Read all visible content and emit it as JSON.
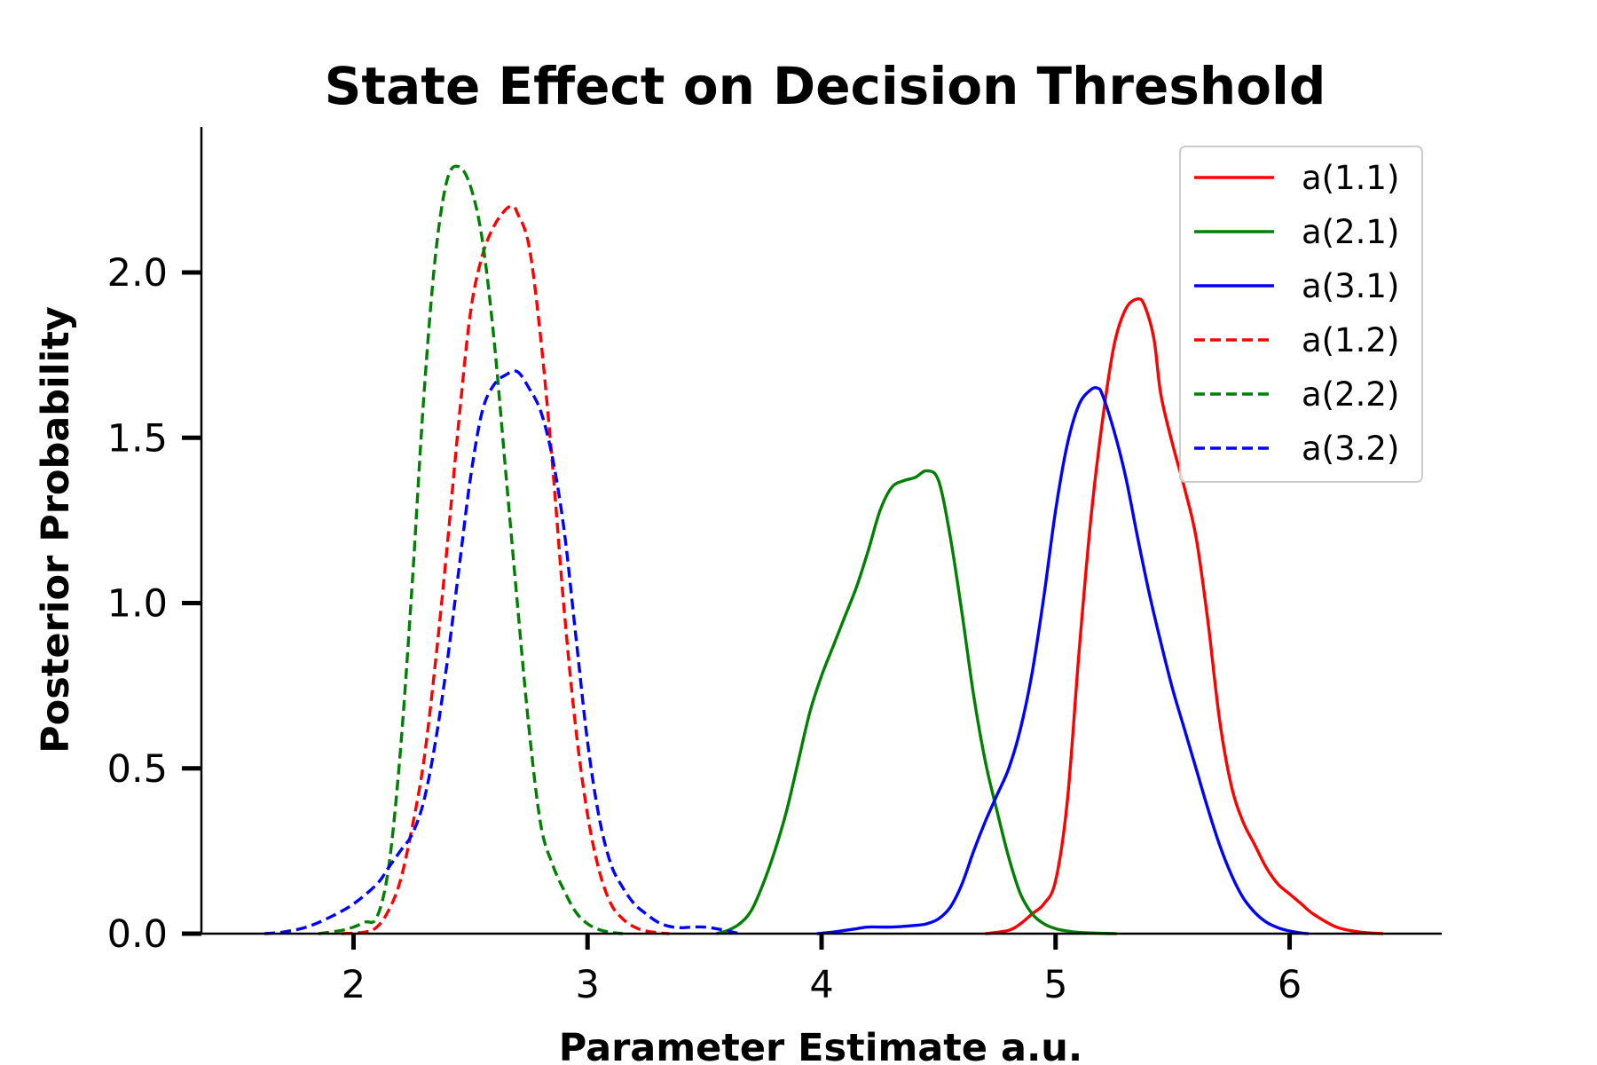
{
  "chart_data": {
    "type": "line",
    "title": "State Effect on Decision Threshold",
    "xlabel": "Parameter Estimate a.u.",
    "ylabel": "Posterior Probability",
    "xlim": [
      1.35,
      6.65
    ],
    "ylim": [
      0,
      2.4
    ],
    "xticks": [
      2,
      3,
      4,
      5,
      6
    ],
    "yticks": [
      0.0,
      0.5,
      1.0,
      1.5,
      2.0
    ],
    "xtick_labels": [
      "2",
      "3",
      "4",
      "5",
      "6"
    ],
    "ytick_labels": [
      "0.0",
      "0.5",
      "1.0",
      "1.5",
      "2.0"
    ],
    "legend_position": "top-right",
    "grid": false,
    "series": [
      {
        "name": "a(1.1)",
        "color": "#ff0000",
        "linestyle": "solid",
        "x": [
          4.7,
          4.8,
          4.85,
          4.9,
          4.95,
          5.0,
          5.05,
          5.1,
          5.15,
          5.2,
          5.25,
          5.3,
          5.35,
          5.38,
          5.42,
          5.45,
          5.5,
          5.55,
          5.6,
          5.65,
          5.7,
          5.75,
          5.8,
          5.85,
          5.9,
          5.95,
          6.0,
          6.05,
          6.1,
          6.2,
          6.3,
          6.4
        ],
        "y": [
          0.0,
          0.01,
          0.03,
          0.06,
          0.09,
          0.16,
          0.4,
          0.85,
          1.25,
          1.55,
          1.78,
          1.89,
          1.92,
          1.9,
          1.8,
          1.63,
          1.48,
          1.35,
          1.2,
          0.95,
          0.65,
          0.45,
          0.34,
          0.27,
          0.2,
          0.15,
          0.12,
          0.09,
          0.06,
          0.02,
          0.005,
          0.0
        ]
      },
      {
        "name": "a(2.1)",
        "color": "#008000",
        "linestyle": "solid",
        "x": [
          3.55,
          3.6,
          3.65,
          3.7,
          3.75,
          3.8,
          3.85,
          3.9,
          3.95,
          4.0,
          4.05,
          4.1,
          4.15,
          4.2,
          4.25,
          4.3,
          4.35,
          4.4,
          4.45,
          4.5,
          4.55,
          4.6,
          4.65,
          4.7,
          4.75,
          4.8,
          4.85,
          4.9,
          4.95,
          5.0,
          5.05,
          5.1,
          5.2,
          5.26
        ],
        "y": [
          0.0,
          0.01,
          0.03,
          0.07,
          0.15,
          0.25,
          0.37,
          0.52,
          0.67,
          0.78,
          0.87,
          0.96,
          1.05,
          1.16,
          1.28,
          1.35,
          1.37,
          1.38,
          1.4,
          1.37,
          1.2,
          0.97,
          0.72,
          0.52,
          0.37,
          0.23,
          0.12,
          0.06,
          0.03,
          0.015,
          0.008,
          0.004,
          0.001,
          0.0
        ]
      },
      {
        "name": "a(3.1)",
        "color": "#0000ff",
        "linestyle": "solid",
        "x": [
          3.98,
          4.05,
          4.1,
          4.15,
          4.2,
          4.3,
          4.4,
          4.45,
          4.5,
          4.55,
          4.6,
          4.65,
          4.7,
          4.75,
          4.8,
          4.85,
          4.9,
          4.95,
          5.0,
          5.05,
          5.1,
          5.15,
          5.18,
          5.2,
          5.25,
          5.3,
          5.35,
          5.4,
          5.45,
          5.5,
          5.55,
          5.6,
          5.65,
          5.7,
          5.75,
          5.8,
          5.85,
          5.9,
          5.95,
          6.0,
          6.05,
          6.08
        ],
        "y": [
          0.0,
          0.005,
          0.01,
          0.015,
          0.02,
          0.02,
          0.025,
          0.03,
          0.045,
          0.08,
          0.15,
          0.25,
          0.34,
          0.42,
          0.5,
          0.62,
          0.79,
          1.02,
          1.28,
          1.48,
          1.6,
          1.645,
          1.65,
          1.63,
          1.52,
          1.38,
          1.2,
          1.03,
          0.88,
          0.74,
          0.62,
          0.5,
          0.38,
          0.27,
          0.18,
          0.11,
          0.065,
          0.035,
          0.018,
          0.008,
          0.002,
          0.0
        ]
      },
      {
        "name": "a(1.2)",
        "color": "#ff0000",
        "linestyle": "dashed",
        "x": [
          1.95,
          2.05,
          2.1,
          2.15,
          2.2,
          2.25,
          2.3,
          2.35,
          2.4,
          2.45,
          2.5,
          2.55,
          2.6,
          2.65,
          2.68,
          2.7,
          2.75,
          2.8,
          2.85,
          2.9,
          2.95,
          3.0,
          3.05,
          3.1,
          3.15,
          3.2,
          3.25,
          3.3,
          3.35
        ],
        "y": [
          0.0,
          0.005,
          0.02,
          0.07,
          0.16,
          0.32,
          0.52,
          0.82,
          1.17,
          1.55,
          1.88,
          2.05,
          2.14,
          2.19,
          2.2,
          2.18,
          2.08,
          1.8,
          1.42,
          0.98,
          0.62,
          0.36,
          0.19,
          0.09,
          0.045,
          0.02,
          0.008,
          0.003,
          0.0
        ]
      },
      {
        "name": "a(2.2)",
        "color": "#008000",
        "linestyle": "dashed",
        "x": [
          1.85,
          1.95,
          2.0,
          2.05,
          2.1,
          2.15,
          2.2,
          2.25,
          2.3,
          2.35,
          2.4,
          2.45,
          2.5,
          2.55,
          2.6,
          2.65,
          2.7,
          2.75,
          2.8,
          2.85,
          2.9,
          2.95,
          3.0,
          3.05,
          3.1,
          3.15
        ],
        "y": [
          0.0,
          0.01,
          0.02,
          0.035,
          0.05,
          0.2,
          0.55,
          1.05,
          1.62,
          2.05,
          2.28,
          2.32,
          2.26,
          2.1,
          1.8,
          1.4,
          1.0,
          0.62,
          0.33,
          0.21,
          0.13,
          0.065,
          0.03,
          0.012,
          0.004,
          0.0
        ]
      },
      {
        "name": "a(3.2)",
        "color": "#0000ff",
        "linestyle": "dashed",
        "x": [
          1.62,
          1.7,
          1.8,
          1.9,
          2.0,
          2.1,
          2.15,
          2.2,
          2.25,
          2.3,
          2.35,
          2.4,
          2.45,
          2.5,
          2.55,
          2.6,
          2.65,
          2.7,
          2.75,
          2.8,
          2.85,
          2.9,
          2.95,
          3.0,
          3.05,
          3.1,
          3.15,
          3.2,
          3.25,
          3.3,
          3.35,
          3.4,
          3.45,
          3.5,
          3.55,
          3.6,
          3.65
        ],
        "y": [
          0.0,
          0.005,
          0.02,
          0.05,
          0.09,
          0.15,
          0.2,
          0.25,
          0.3,
          0.4,
          0.58,
          0.82,
          1.1,
          1.38,
          1.58,
          1.66,
          1.69,
          1.7,
          1.65,
          1.58,
          1.44,
          1.22,
          0.9,
          0.58,
          0.35,
          0.21,
          0.14,
          0.09,
          0.06,
          0.035,
          0.022,
          0.018,
          0.02,
          0.02,
          0.015,
          0.008,
          0.0
        ]
      }
    ]
  }
}
